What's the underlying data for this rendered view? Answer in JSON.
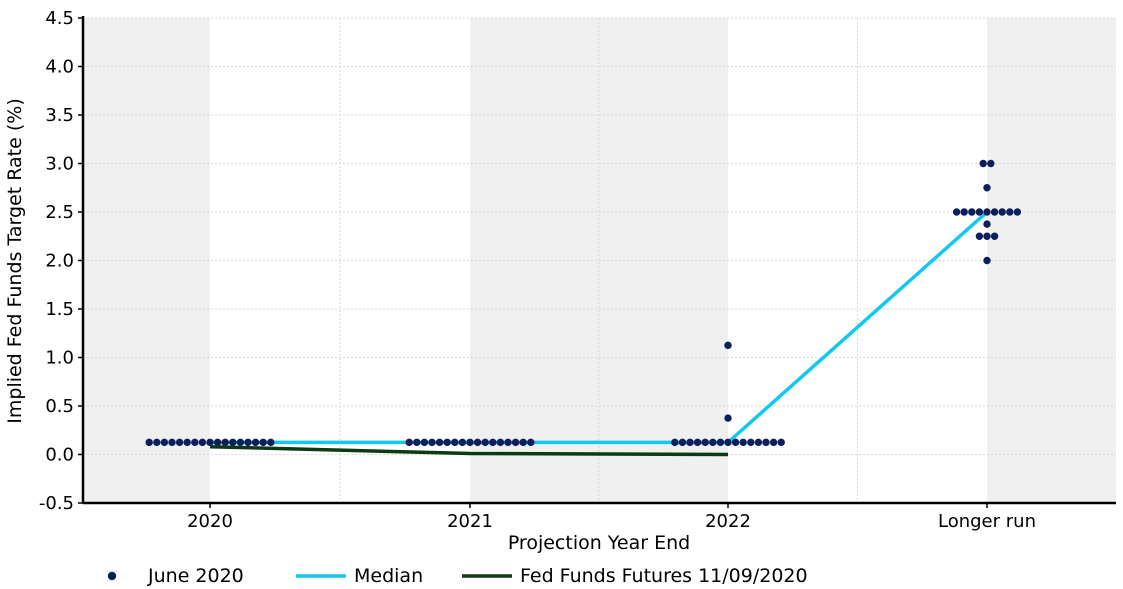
{
  "chart_data": {
    "type": "scatter",
    "title": "",
    "xlabel": "Projection Year End",
    "ylabel": "Implied Fed Funds Target Rate (%)",
    "ylim": [
      -0.5,
      4.5
    ],
    "yticks": [
      "-0.5",
      "0.0",
      "0.5",
      "1.0",
      "1.5",
      "2.0",
      "2.5",
      "3.0",
      "3.5",
      "4.0",
      "4.5"
    ],
    "categories": [
      "2020",
      "2021",
      "2022",
      "Longer run"
    ],
    "grid": true,
    "shaded_bands": true,
    "legend_position": "bottom",
    "colors": {
      "dots": "#0b1f5c",
      "median": "#10c8f0",
      "futures": "#0b3a14",
      "band": "#f0f0f0",
      "grid": "#d9d9d9"
    },
    "series": [
      {
        "name": "June 2020",
        "kind": "dots",
        "groups": [
          {
            "category": "2020",
            "values": [
              {
                "y": 0.125,
                "count": 17
              }
            ]
          },
          {
            "category": "2021",
            "values": [
              {
                "y": 0.125,
                "count": 17
              }
            ]
          },
          {
            "category": "2022",
            "values": [
              {
                "y": 1.125,
                "count": 1
              },
              {
                "y": 0.375,
                "count": 1
              },
              {
                "y": 0.125,
                "count": 15
              }
            ]
          },
          {
            "category": "Longer run",
            "values": [
              {
                "y": 3.0,
                "count": 2
              },
              {
                "y": 2.75,
                "count": 1
              },
              {
                "y": 2.5,
                "count": 9
              },
              {
                "y": 2.375,
                "count": 1
              },
              {
                "y": 2.25,
                "count": 3
              },
              {
                "y": 2.0,
                "count": 1
              }
            ]
          }
        ]
      },
      {
        "name": "Median",
        "kind": "line",
        "points": [
          {
            "category": "2020",
            "y": 0.125
          },
          {
            "category": "2021",
            "y": 0.125
          },
          {
            "category": "2022",
            "y": 0.125
          },
          {
            "category": "Longer run",
            "y": 2.5
          }
        ]
      },
      {
        "name": "Fed Funds Futures 11/09/2020",
        "kind": "line",
        "points": [
          {
            "category": "2020",
            "y": 0.08
          },
          {
            "category": "2021",
            "y": 0.01
          },
          {
            "category": "2022",
            "y": 0.0
          }
        ]
      }
    ]
  }
}
